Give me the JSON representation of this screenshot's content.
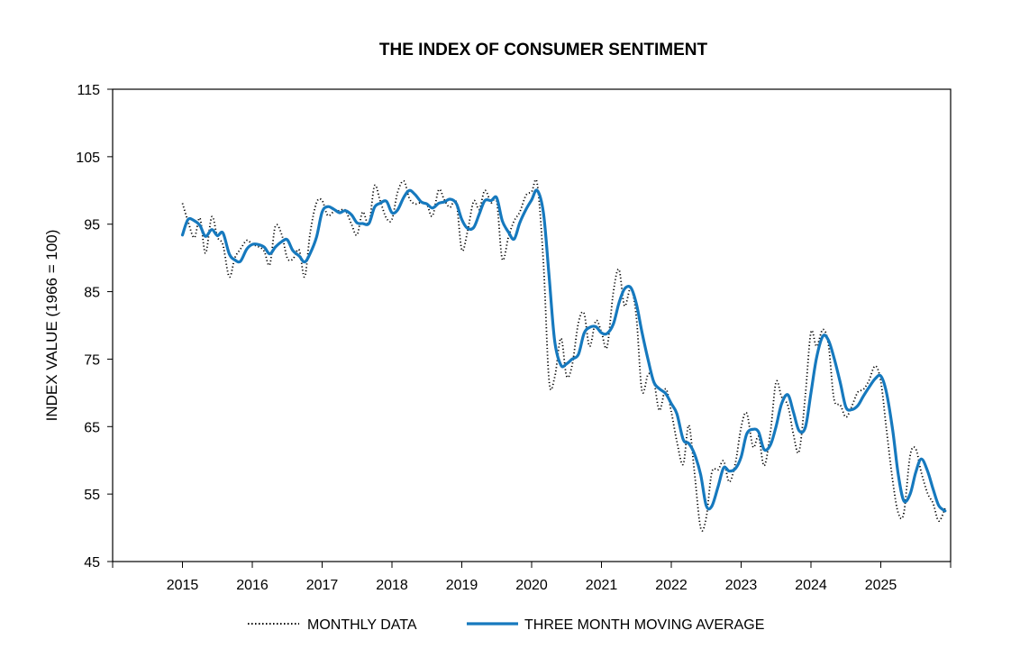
{
  "chart_data": {
    "type": "line",
    "title": "THE INDEX OF CONSUMER SENTIMENT",
    "xlabel": "",
    "ylabel": "INDEX VALUE (1966 = 100)",
    "ylim": [
      45,
      115
    ],
    "yticks": [
      45,
      55,
      65,
      75,
      85,
      95,
      105,
      115
    ],
    "xlim": [
      2014,
      2026
    ],
    "xticks": [
      "2015",
      "2016",
      "2017",
      "2018",
      "2019",
      "2020",
      "2021",
      "2022",
      "2023",
      "2024",
      "2025"
    ],
    "grid": false,
    "legend_position": "bottom",
    "series": [
      {
        "name": "MONTHLY DATA",
        "color": "#000000",
        "style": "dotted",
        "x": [
          2015.0,
          2015.08,
          2015.17,
          2015.25,
          2015.33,
          2015.42,
          2015.5,
          2015.58,
          2015.67,
          2015.75,
          2015.83,
          2015.92,
          2016.0,
          2016.08,
          2016.17,
          2016.25,
          2016.33,
          2016.42,
          2016.5,
          2016.58,
          2016.67,
          2016.75,
          2016.83,
          2016.92,
          2017.0,
          2017.08,
          2017.17,
          2017.25,
          2017.33,
          2017.42,
          2017.5,
          2017.58,
          2017.67,
          2017.75,
          2017.83,
          2017.92,
          2018.0,
          2018.08,
          2018.17,
          2018.25,
          2018.33,
          2018.42,
          2018.5,
          2018.58,
          2018.67,
          2018.75,
          2018.83,
          2018.92,
          2019.0,
          2019.08,
          2019.17,
          2019.25,
          2019.33,
          2019.42,
          2019.5,
          2019.58,
          2019.67,
          2019.75,
          2019.83,
          2019.92,
          2020.0,
          2020.08,
          2020.17,
          2020.25,
          2020.33,
          2020.42,
          2020.5,
          2020.58,
          2020.67,
          2020.75,
          2020.83,
          2020.92,
          2021.0,
          2021.08,
          2021.17,
          2021.25,
          2021.33,
          2021.42,
          2021.5,
          2021.58,
          2021.67,
          2021.75,
          2021.83,
          2021.92,
          2022.0,
          2022.08,
          2022.17,
          2022.25,
          2022.33,
          2022.42,
          2022.5,
          2022.58,
          2022.67,
          2022.75,
          2022.83,
          2022.92,
          2023.0,
          2023.08,
          2023.17,
          2023.25,
          2023.33,
          2023.42,
          2023.5,
          2023.58,
          2023.67,
          2023.75,
          2023.83,
          2023.92,
          2024.0,
          2024.08,
          2024.17,
          2024.25,
          2024.33,
          2024.42,
          2024.5,
          2024.58,
          2024.67,
          2024.75,
          2024.83,
          2024.92,
          2025.0,
          2025.08,
          2025.17,
          2025.25,
          2025.33,
          2025.42,
          2025.5,
          2025.58,
          2025.67,
          2025.75,
          2025.83,
          2025.92
        ],
        "values": [
          98.1,
          95.4,
          93.0,
          95.9,
          90.7,
          96.1,
          93.1,
          91.9,
          87.2,
          90.0,
          91.3,
          92.6,
          92.0,
          91.7,
          91.0,
          89.0,
          94.7,
          93.5,
          90.0,
          89.8,
          91.2,
          87.2,
          93.8,
          98.2,
          98.5,
          96.3,
          96.9,
          97.0,
          97.1,
          95.0,
          93.4,
          96.8,
          95.1,
          100.7,
          98.5,
          95.9,
          95.7,
          99.7,
          101.4,
          98.8,
          98.0,
          98.2,
          97.9,
          96.2,
          100.1,
          98.6,
          97.5,
          98.3,
          91.2,
          93.8,
          98.4,
          97.2,
          100.0,
          98.2,
          98.4,
          89.8,
          93.2,
          95.5,
          96.8,
          99.3,
          99.8,
          101.0,
          89.1,
          71.8,
          72.3,
          78.1,
          72.5,
          74.1,
          80.4,
          81.8,
          76.9,
          80.7,
          79.0,
          76.8,
          84.9,
          88.3,
          82.9,
          85.5,
          81.2,
          70.3,
          72.8,
          71.7,
          67.4,
          70.6,
          67.2,
          62.8,
          59.4,
          65.2,
          58.4,
          50.0,
          51.5,
          58.2,
          58.6,
          59.9,
          56.8,
          59.7,
          64.9,
          67.0,
          62.0,
          63.5,
          59.2,
          64.2,
          71.6,
          69.4,
          68.1,
          63.8,
          61.3,
          69.7,
          79.0,
          76.9,
          79.4,
          77.2,
          69.1,
          68.2,
          66.4,
          67.9,
          70.1,
          70.5,
          71.8,
          74.0,
          71.7,
          64.7,
          57.0,
          52.2,
          52.2,
          60.7,
          61.7,
          58.2,
          55.1,
          53.6,
          51.0,
          52.9
        ]
      },
      {
        "name": "THREE MONTH MOVING AVERAGE",
        "color": "#1679be",
        "style": "solid",
        "x": [
          2015.0,
          2015.08,
          2015.17,
          2015.25,
          2015.33,
          2015.42,
          2015.5,
          2015.58,
          2015.67,
          2015.75,
          2015.83,
          2015.92,
          2016.0,
          2016.08,
          2016.17,
          2016.25,
          2016.33,
          2016.42,
          2016.5,
          2016.58,
          2016.67,
          2016.75,
          2016.83,
          2016.92,
          2017.0,
          2017.08,
          2017.17,
          2017.25,
          2017.33,
          2017.42,
          2017.5,
          2017.58,
          2017.67,
          2017.75,
          2017.83,
          2017.92,
          2018.0,
          2018.08,
          2018.17,
          2018.25,
          2018.33,
          2018.42,
          2018.5,
          2018.58,
          2018.67,
          2018.75,
          2018.83,
          2018.92,
          2019.0,
          2019.08,
          2019.17,
          2019.25,
          2019.33,
          2019.42,
          2019.5,
          2019.58,
          2019.67,
          2019.75,
          2019.83,
          2019.92,
          2020.0,
          2020.08,
          2020.17,
          2020.25,
          2020.33,
          2020.42,
          2020.5,
          2020.58,
          2020.67,
          2020.75,
          2020.83,
          2020.92,
          2021.0,
          2021.08,
          2021.17,
          2021.25,
          2021.33,
          2021.42,
          2021.5,
          2021.58,
          2021.67,
          2021.75,
          2021.83,
          2021.92,
          2022.0,
          2022.08,
          2022.17,
          2022.25,
          2022.33,
          2022.42,
          2022.5,
          2022.58,
          2022.67,
          2022.75,
          2022.83,
          2022.92,
          2023.0,
          2023.08,
          2023.17,
          2023.25,
          2023.33,
          2023.42,
          2023.5,
          2023.58,
          2023.67,
          2023.75,
          2023.83,
          2023.92,
          2024.0,
          2024.08,
          2024.17,
          2024.25,
          2024.33,
          2024.42,
          2024.5,
          2024.58,
          2024.67,
          2024.75,
          2024.83,
          2024.92,
          2025.0,
          2025.08,
          2025.17,
          2025.25,
          2025.33,
          2025.42,
          2025.5,
          2025.58,
          2025.67,
          2025.75,
          2025.83,
          2025.92
        ],
        "values": [
          93.4,
          95.7,
          95.5,
          94.8,
          93.2,
          94.2,
          93.3,
          93.7,
          90.6,
          89.7,
          89.5,
          91.3,
          92.0,
          92.0,
          91.6,
          90.6,
          91.6,
          92.4,
          92.7,
          91.1,
          90.3,
          89.4,
          90.7,
          93.1,
          96.8,
          97.6,
          97.2,
          96.7,
          97.0,
          96.4,
          95.2,
          95.1,
          95.1,
          97.5,
          98.1,
          98.4,
          96.7,
          97.1,
          99.0,
          100.0,
          99.4,
          98.3,
          98.0,
          97.4,
          98.1,
          98.3,
          98.7,
          98.1,
          95.7,
          94.4,
          94.5,
          96.5,
          98.5,
          98.5,
          98.9,
          95.5,
          93.8,
          92.8,
          95.2,
          97.2,
          98.6,
          100.0,
          96.6,
          87.3,
          77.7,
          74.1,
          74.3,
          75.0,
          75.7,
          78.8,
          79.7,
          79.8,
          78.9,
          78.8,
          80.2,
          83.3,
          85.4,
          85.6,
          83.2,
          79.0,
          74.8,
          71.6,
          70.6,
          69.9,
          68.4,
          66.9,
          63.1,
          62.5,
          61.0,
          57.9,
          53.3,
          53.2,
          56.1,
          58.9,
          58.4,
          58.8,
          60.5,
          63.9,
          64.6,
          64.2,
          61.6,
          62.3,
          65.0,
          68.4,
          69.7,
          67.1,
          64.4,
          64.9,
          70.0,
          75.2,
          78.4,
          77.8,
          75.2,
          71.5,
          67.9,
          67.5,
          68.1,
          69.5,
          70.8,
          72.1,
          72.5,
          70.1,
          64.5,
          57.9,
          54.0,
          55.0,
          58.2,
          60.2,
          58.4,
          55.7,
          53.3,
          52.5
        ]
      }
    ]
  }
}
